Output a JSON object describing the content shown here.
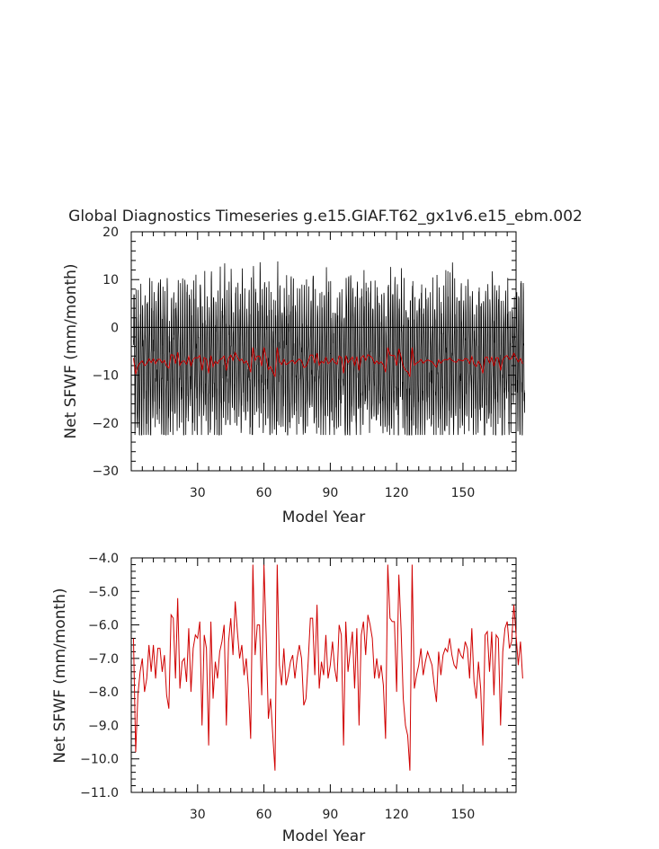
{
  "chart_data": [
    {
      "type": "line",
      "title": "Global Diagnostics Timeseries g.e15.GIAF.T62_gx1v6.e15_ebm.002",
      "xlabel": "Model Year",
      "ylabel": "Net SFWF (mm/month)",
      "xlim": [
        0,
        174
      ],
      "ylim": [
        -30,
        20
      ],
      "xticks": [
        30,
        60,
        90,
        120,
        150
      ],
      "yticks": [
        -30,
        -20,
        -10,
        0,
        10,
        20
      ],
      "xtick_labels": [
        "30",
        "60",
        "90",
        "120",
        "150"
      ],
      "ytick_labels": [
        "−30",
        "−20",
        "−10",
        "0",
        "10",
        "20"
      ],
      "zero_line": true,
      "series": [
        {
          "kind": "monthly",
          "color": "#000000",
          "note_visible": "monthly values oscillating roughly between -22 and 14",
          "seasonal_max": 14,
          "seasonal_min": -22
        },
        {
          "kind": "annual",
          "color": "#d00000"
        }
      ]
    },
    {
      "type": "line",
      "title": "",
      "xlabel": "Model Year",
      "ylabel": "Net SFWF (mm/month)",
      "xlim": [
        0,
        174
      ],
      "ylim": [
        -11,
        -4
      ],
      "xticks": [
        30,
        60,
        90,
        120,
        150
      ],
      "yticks": [
        -11,
        -10,
        -9,
        -8,
        -7,
        -6,
        -5,
        -4
      ],
      "xtick_labels": [
        "30",
        "60",
        "90",
        "120",
        "150"
      ],
      "ytick_labels": [
        "−11.0",
        "−10.0",
        "−9.0",
        "−8.0",
        "−7.0",
        "−6.0",
        "−5.0",
        "−4.0"
      ],
      "series": [
        {
          "kind": "annual",
          "color": "#d00000",
          "x_start": 1,
          "values": [
            -6.4,
            -9.8,
            -8.1,
            -7.4,
            -7.0,
            -8.0,
            -7.6,
            -6.6,
            -7.4,
            -6.6,
            -7.6,
            -6.7,
            -6.7,
            -7.4,
            -6.9,
            -8.1,
            -8.5,
            -5.7,
            -5.8,
            -7.6,
            -5.2,
            -7.9,
            -7.1,
            -7.0,
            -7.7,
            -6.1,
            -8.0,
            -6.7,
            -6.3,
            -6.4,
            -5.9,
            -9.0,
            -6.3,
            -6.7,
            -9.6,
            -5.9,
            -8.2,
            -7.1,
            -7.6,
            -6.8,
            -6.5,
            -6.0,
            -9.0,
            -6.5,
            -5.8,
            -6.9,
            -5.3,
            -6.2,
            -7.0,
            -6.6,
            -7.5,
            -7.0,
            -7.9,
            -9.4,
            -4.2,
            -6.9,
            -6.0,
            -6.0,
            -8.1,
            -4.2,
            -6.3,
            -8.8,
            -8.2,
            -9.3,
            -10.35,
            -4.2,
            -7.2,
            -7.8,
            -6.7,
            -7.8,
            -7.5,
            -7.1,
            -6.9,
            -7.6,
            -7.0,
            -6.6,
            -7.0,
            -8.4,
            -8.2,
            -7.1,
            -5.8,
            -5.8,
            -7.5,
            -5.4,
            -7.9,
            -7.1,
            -7.5,
            -6.3,
            -7.6,
            -7.2,
            -6.5,
            -7.3,
            -7.7,
            -6.0,
            -6.3,
            -9.6,
            -5.9,
            -7.4,
            -6.8,
            -6.2,
            -7.9,
            -6.1,
            -9.0,
            -6.3,
            -5.9,
            -6.9,
            -5.7,
            -6.0,
            -6.4,
            -7.6,
            -7.0,
            -7.6,
            -7.2,
            -7.8,
            -9.4,
            -4.2,
            -5.8,
            -5.9,
            -5.9,
            -8.0,
            -4.5,
            -6.1,
            -8.2,
            -9.0,
            -9.3,
            -10.35,
            -4.2,
            -7.9,
            -7.5,
            -7.2,
            -6.7,
            -7.5,
            -7.1,
            -6.8,
            -7.0,
            -7.2,
            -7.8,
            -8.3,
            -6.8,
            -7.5,
            -6.9,
            -6.7,
            -6.8,
            -6.4,
            -6.9,
            -7.2,
            -7.3,
            -6.7,
            -6.9,
            -7.0,
            -6.5,
            -6.7,
            -7.6,
            -6.1,
            -7.7,
            -8.2,
            -7.1,
            -7.9,
            -9.6,
            -6.3,
            -6.2,
            -7.4,
            -6.2,
            -8.1,
            -6.3,
            -6.4,
            -9.0,
            -6.8,
            -6.1,
            -5.9,
            -6.7,
            -6.5,
            -5.4,
            -6.3,
            -7.2,
            -6.5,
            -7.6
          ]
        }
      ]
    }
  ]
}
